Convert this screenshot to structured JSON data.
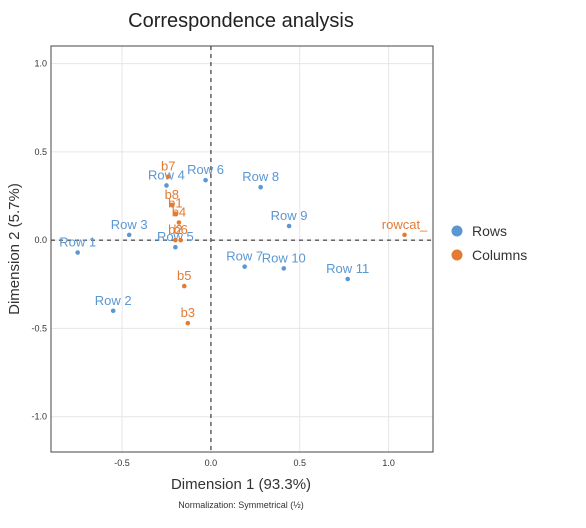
{
  "chart_data": {
    "type": "scatter",
    "title": "Correspondence analysis",
    "xlabel": "Dimension 1 (93.3%)",
    "ylabel": "Dimension 2 (5.7%)",
    "note": "Normalization: Symmetrical (½)",
    "xlim": [
      -0.9,
      1.25
    ],
    "ylim": [
      -1.2,
      1.1
    ],
    "xticks": [
      {
        "value": -0.5,
        "label": "-0.5"
      },
      {
        "value": 0.0,
        "label": "0.0"
      },
      {
        "value": 0.5,
        "label": "0.5"
      },
      {
        "value": 1.0,
        "label": "1.0"
      }
    ],
    "yticks": [
      {
        "value": -1.0,
        "label": "-1.0"
      },
      {
        "value": -0.5,
        "label": "-0.5"
      },
      {
        "value": 0.0,
        "label": "0.0"
      },
      {
        "value": 0.5,
        "label": "0.5"
      },
      {
        "value": 1.0,
        "label": "1.0"
      }
    ],
    "grid": true,
    "legend_position": "right",
    "series": [
      {
        "name": "Rows",
        "color": "#5b97d1",
        "points": [
          {
            "label": "Row 1",
            "x": -0.75,
            "y": -0.07
          },
          {
            "label": "Row 2",
            "x": -0.55,
            "y": -0.4
          },
          {
            "label": "Row 3",
            "x": -0.46,
            "y": 0.03
          },
          {
            "label": "Row 4",
            "x": -0.25,
            "y": 0.31
          },
          {
            "label": "Row 5",
            "x": -0.2,
            "y": -0.04
          },
          {
            "label": "Row 6",
            "x": -0.03,
            "y": 0.34
          },
          {
            "label": "Row 7",
            "x": 0.19,
            "y": -0.15
          },
          {
            "label": "Row 8",
            "x": 0.28,
            "y": 0.3
          },
          {
            "label": "Row 9",
            "x": 0.44,
            "y": 0.08
          },
          {
            "label": "Row 10",
            "x": 0.41,
            "y": -0.16
          },
          {
            "label": "Row 11",
            "x": 0.77,
            "y": -0.22
          }
        ]
      },
      {
        "name": "Columns",
        "color": "#e37b33",
        "points": [
          {
            "label": "b7",
            "x": -0.24,
            "y": 0.36
          },
          {
            "label": "b8",
            "x": -0.22,
            "y": 0.2
          },
          {
            "label": "b1",
            "x": -0.2,
            "y": 0.15
          },
          {
            "label": "b4",
            "x": -0.18,
            "y": 0.1
          },
          {
            "label": "b2",
            "x": -0.2,
            "y": 0.0
          },
          {
            "label": "b6",
            "x": -0.17,
            "y": 0.0
          },
          {
            "label": "b5",
            "x": -0.15,
            "y": -0.26
          },
          {
            "label": "b3",
            "x": -0.13,
            "y": -0.47
          },
          {
            "label": "rowcat_",
            "x": 1.09,
            "y": 0.03
          }
        ]
      }
    ]
  }
}
